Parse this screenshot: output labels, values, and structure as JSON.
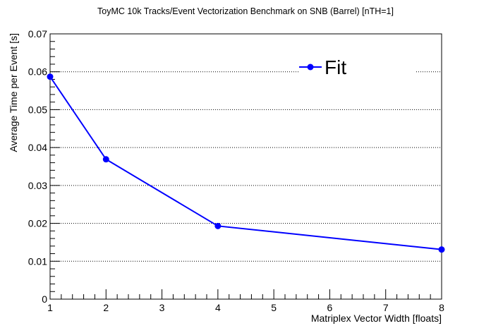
{
  "chart_data": {
    "type": "line",
    "title": "ToyMC 10k Tracks/Event Vectorization Benchmark on SNB (Barrel) [nTH=1]",
    "xlabel": "Matriplex Vector Width [floats]",
    "ylabel": "Average Time per Event [s]",
    "xlim": [
      1,
      8
    ],
    "ylim": [
      0,
      0.07
    ],
    "x_ticks": [
      "1",
      "2",
      "3",
      "4",
      "5",
      "6",
      "7",
      "8"
    ],
    "y_ticks": [
      "0",
      "0.01",
      "0.02",
      "0.03",
      "0.04",
      "0.05",
      "0.06",
      "0.07"
    ],
    "grid": "horizontal dotted",
    "legend_position": "top-right",
    "series": [
      {
        "name": "Fit",
        "color": "#0000ff",
        "x": [
          1,
          2,
          4,
          8
        ],
        "y": [
          0.0587,
          0.0369,
          0.0193,
          0.0131
        ]
      }
    ]
  }
}
